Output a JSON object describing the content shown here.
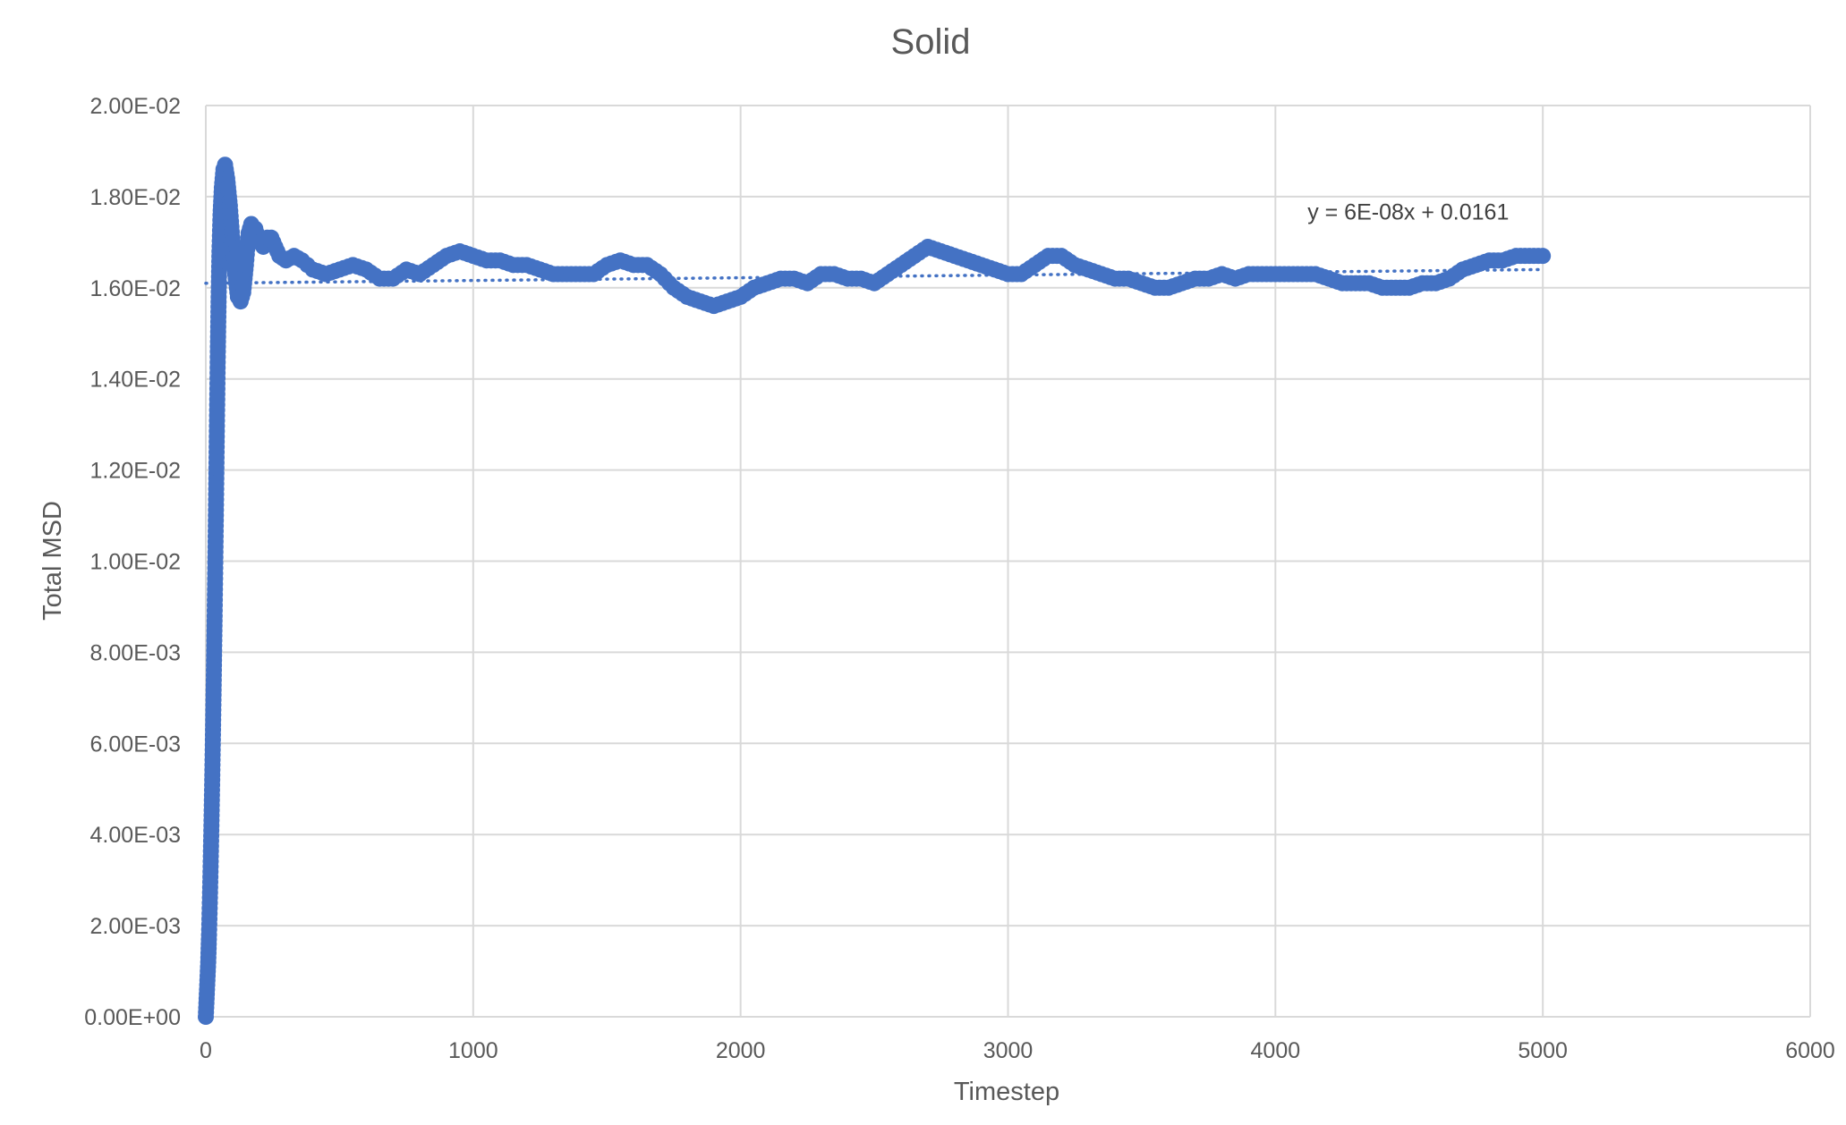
{
  "chart_data": {
    "type": "scatter",
    "title": "Solid",
    "xlabel": "Timestep",
    "ylabel": "Total MSD",
    "xlim": [
      0,
      6000
    ],
    "ylim": [
      0,
      0.02
    ],
    "x_ticks": [
      0,
      1000,
      2000,
      3000,
      4000,
      5000,
      6000
    ],
    "x_tick_labels": [
      "0",
      "1000",
      "2000",
      "3000",
      "4000",
      "5000",
      "6000"
    ],
    "y_ticks": [
      0,
      0.002,
      0.004,
      0.006,
      0.008,
      0.01,
      0.012,
      0.014,
      0.016,
      0.018,
      0.02
    ],
    "y_tick_labels": [
      "0.00E+00",
      "2.00E-03",
      "4.00E-03",
      "6.00E-03",
      "8.00E-03",
      "1.00E-02",
      "1.20E-02",
      "1.40E-02",
      "1.60E-02",
      "1.80E-02",
      "2.00E-02"
    ],
    "grid": true,
    "marker_color": "#4472c4",
    "series": [
      {
        "points": [
          [
            0,
            0.0
          ],
          [
            3,
            0.0004
          ],
          [
            6,
            0.0008
          ],
          [
            9,
            0.0012
          ],
          [
            12,
            0.0018
          ],
          [
            15,
            0.0025
          ],
          [
            18,
            0.0033
          ],
          [
            21,
            0.0042
          ],
          [
            24,
            0.0052
          ],
          [
            27,
            0.0063
          ],
          [
            30,
            0.0075
          ],
          [
            33,
            0.0088
          ],
          [
            36,
            0.0102
          ],
          [
            39,
            0.0117
          ],
          [
            42,
            0.0132
          ],
          [
            45,
            0.0146
          ],
          [
            48,
            0.0158
          ],
          [
            51,
            0.0168
          ],
          [
            55,
            0.0176
          ],
          [
            60,
            0.0182
          ],
          [
            66,
            0.0186
          ],
          [
            72,
            0.0187
          ],
          [
            80,
            0.0184
          ],
          [
            90,
            0.0178
          ],
          [
            100,
            0.017
          ],
          [
            110,
            0.0163
          ],
          [
            120,
            0.0158
          ],
          [
            130,
            0.0157
          ],
          [
            140,
            0.0159
          ],
          [
            150,
            0.0165
          ],
          [
            160,
            0.0172
          ],
          [
            170,
            0.0174
          ],
          [
            185,
            0.0173
          ],
          [
            200,
            0.017
          ],
          [
            215,
            0.0169
          ],
          [
            230,
            0.0171
          ],
          [
            245,
            0.0171
          ],
          [
            260,
            0.0169
          ],
          [
            275,
            0.0167
          ],
          [
            300,
            0.0166
          ],
          [
            330,
            0.0167
          ],
          [
            360,
            0.0166
          ],
          [
            400,
            0.0164
          ],
          [
            450,
            0.0163
          ],
          [
            500,
            0.0164
          ],
          [
            550,
            0.0165
          ],
          [
            600,
            0.0164
          ],
          [
            650,
            0.0162
          ],
          [
            700,
            0.0162
          ],
          [
            750,
            0.0164
          ],
          [
            800,
            0.0163
          ],
          [
            850,
            0.0165
          ],
          [
            900,
            0.0167
          ],
          [
            950,
            0.0168
          ],
          [
            1000,
            0.0167
          ],
          [
            1050,
            0.0166
          ],
          [
            1100,
            0.0166
          ],
          [
            1150,
            0.0165
          ],
          [
            1200,
            0.0165
          ],
          [
            1250,
            0.0164
          ],
          [
            1300,
            0.0163
          ],
          [
            1350,
            0.0163
          ],
          [
            1400,
            0.0163
          ],
          [
            1450,
            0.0163
          ],
          [
            1500,
            0.0165
          ],
          [
            1550,
            0.0166
          ],
          [
            1600,
            0.0165
          ],
          [
            1650,
            0.0165
          ],
          [
            1700,
            0.0163
          ],
          [
            1750,
            0.016
          ],
          [
            1800,
            0.0158
          ],
          [
            1850,
            0.0157
          ],
          [
            1900,
            0.0156
          ],
          [
            1950,
            0.0157
          ],
          [
            2000,
            0.0158
          ],
          [
            2050,
            0.016
          ],
          [
            2100,
            0.0161
          ],
          [
            2150,
            0.0162
          ],
          [
            2200,
            0.0162
          ],
          [
            2250,
            0.0161
          ],
          [
            2300,
            0.0163
          ],
          [
            2350,
            0.0163
          ],
          [
            2400,
            0.0162
          ],
          [
            2450,
            0.0162
          ],
          [
            2500,
            0.0161
          ],
          [
            2550,
            0.0163
          ],
          [
            2600,
            0.0165
          ],
          [
            2650,
            0.0167
          ],
          [
            2700,
            0.0169
          ],
          [
            2750,
            0.0168
          ],
          [
            2800,
            0.0167
          ],
          [
            2850,
            0.0166
          ],
          [
            2900,
            0.0165
          ],
          [
            2950,
            0.0164
          ],
          [
            3000,
            0.0163
          ],
          [
            3050,
            0.0163
          ],
          [
            3100,
            0.0165
          ],
          [
            3150,
            0.0167
          ],
          [
            3200,
            0.0167
          ],
          [
            3250,
            0.0165
          ],
          [
            3300,
            0.0164
          ],
          [
            3350,
            0.0163
          ],
          [
            3400,
            0.0162
          ],
          [
            3450,
            0.0162
          ],
          [
            3500,
            0.0161
          ],
          [
            3550,
            0.016
          ],
          [
            3600,
            0.016
          ],
          [
            3650,
            0.0161
          ],
          [
            3700,
            0.0162
          ],
          [
            3750,
            0.0162
          ],
          [
            3800,
            0.0163
          ],
          [
            3850,
            0.0162
          ],
          [
            3900,
            0.0163
          ],
          [
            3950,
            0.0163
          ],
          [
            4000,
            0.0163
          ],
          [
            4050,
            0.0163
          ],
          [
            4100,
            0.0163
          ],
          [
            4150,
            0.0163
          ],
          [
            4200,
            0.0162
          ],
          [
            4250,
            0.0161
          ],
          [
            4300,
            0.0161
          ],
          [
            4350,
            0.0161
          ],
          [
            4400,
            0.016
          ],
          [
            4450,
            0.016
          ],
          [
            4500,
            0.016
          ],
          [
            4550,
            0.0161
          ],
          [
            4600,
            0.0161
          ],
          [
            4650,
            0.0162
          ],
          [
            4700,
            0.0164
          ],
          [
            4750,
            0.0165
          ],
          [
            4800,
            0.0166
          ],
          [
            4850,
            0.0166
          ],
          [
            4900,
            0.0167
          ],
          [
            4950,
            0.0167
          ],
          [
            5000,
            0.0167
          ]
        ]
      }
    ],
    "trendline": {
      "type": "linear",
      "slope": 6e-08,
      "intercept": 0.0161,
      "x_range": [
        0,
        5000
      ],
      "label": "y = 6E-08x + 0.0161",
      "label_anchor": [
        4120,
        0.0175
      ],
      "color": "#4472c4",
      "style": "dotted"
    }
  }
}
